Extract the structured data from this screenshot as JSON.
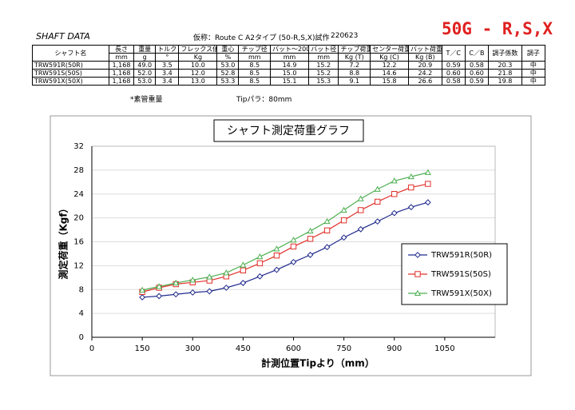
{
  "header": {
    "title": "SHAFT DATA",
    "subtitle": "仮称：Route C A2タイプ (50-R,S,X)試作",
    "date": "220623",
    "badge": "50G - R,S,X"
  },
  "table": {
    "headers": [
      "シャフト名",
      "長さ",
      "重量",
      "トルク",
      "フレックス値",
      "重心",
      "チップ径",
      "バット～200",
      "バット径",
      "チップ荷重",
      "センター荷重",
      "バット荷重",
      "T／C",
      "C／B",
      "調子係数",
      "調子"
    ],
    "units": [
      "mm",
      "g",
      "°",
      "Kg",
      "%",
      "mm",
      "mm",
      "mm",
      "Kg (T)",
      "Kg (C)",
      "Kg (B)"
    ],
    "rows": [
      [
        "TRW591R(50R)",
        "1,168",
        "49.0",
        "3.5",
        "10.0",
        "53.0",
        "8.5",
        "14.9",
        "15.2",
        "7.2",
        "12.2",
        "20.9",
        "0.59",
        "0.58",
        "20.3",
        "中"
      ],
      [
        "TRW591S(50S)",
        "1,168",
        "52.0",
        "3.4",
        "12.0",
        "52.8",
        "8.5",
        "15.0",
        "15.2",
        "8.8",
        "14.6",
        "24.2",
        "0.60",
        "0.60",
        "21.8",
        "中"
      ],
      [
        "TRW591X(50X)",
        "1,168",
        "53.0",
        "3.4",
        "13.0",
        "53.3",
        "8.5",
        "15.1",
        "15.3",
        "9.1",
        "15.8",
        "26.6",
        "0.58",
        "0.59",
        "19.8",
        "中"
      ]
    ],
    "notes": [
      "*素管重量",
      "Tipパラ：80mm"
    ]
  },
  "chart_data": {
    "type": "line",
    "title": "シャフト測定荷重グラフ",
    "x_label": "計測位置Tipより（mm）",
    "y_label": "測定荷重（Kgf）",
    "x": [
      150,
      200,
      250,
      300,
      350,
      400,
      450,
      500,
      550,
      600,
      650,
      700,
      750,
      800,
      850,
      900,
      950,
      1000
    ],
    "series": [
      {
        "name": "TRW591R(50R)",
        "color": "#1f2a8c",
        "marker": "diamond",
        "values": [
          6.7,
          6.9,
          7.2,
          7.5,
          7.7,
          8.3,
          9.1,
          10.2,
          11.3,
          12.6,
          13.8,
          15.1,
          16.7,
          18.1,
          19.4,
          20.8,
          21.8,
          22.6
        ]
      },
      {
        "name": "TRW591S(50S)",
        "color": "#e0302a",
        "marker": "square",
        "values": [
          7.6,
          8.3,
          8.9,
          9.2,
          9.5,
          10.2,
          11.2,
          12.4,
          13.7,
          15.2,
          16.5,
          17.9,
          19.6,
          21.3,
          22.7,
          24.0,
          25.1,
          25.7
        ]
      },
      {
        "name": "TRW591X(50X)",
        "color": "#4caf50",
        "marker": "triangle",
        "values": [
          7.9,
          8.5,
          9.1,
          9.6,
          10.1,
          10.8,
          12.1,
          13.5,
          14.8,
          16.3,
          17.8,
          19.4,
          21.3,
          23.2,
          24.8,
          26.2,
          26.9,
          27.6
        ]
      }
    ],
    "xlim": [
      0,
      1200
    ],
    "xticks": [
      0,
      150,
      300,
      450,
      600,
      750,
      900,
      1050
    ],
    "ylim": [
      0,
      32
    ],
    "yticks": [
      0,
      4,
      8,
      12,
      16,
      20,
      24,
      28,
      32
    ],
    "grid": true
  }
}
